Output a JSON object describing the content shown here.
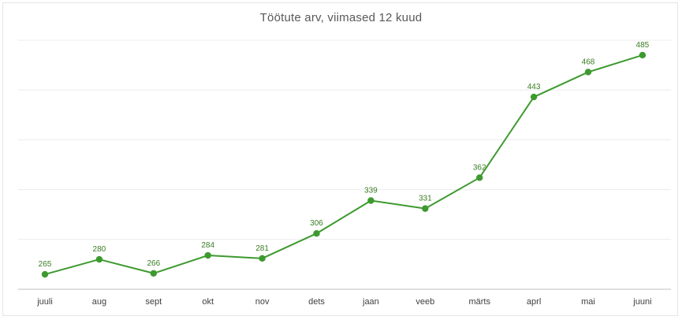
{
  "chart_data": {
    "type": "line",
    "title": "Töötute arv, viimased 12 kuud",
    "xlabel": "",
    "ylabel": "",
    "categories": [
      "juuli",
      "aug",
      "sept",
      "okt",
      "nov",
      "dets",
      "jaan",
      "veeb",
      "märts",
      "aprl",
      "mai",
      "juuni"
    ],
    "series": [
      {
        "values": [
          265,
          280,
          266,
          284,
          281,
          306,
          339,
          331,
          362,
          443,
          468,
          485
        ]
      }
    ],
    "ylim": [
      250,
      500
    ],
    "grid": true,
    "legend": "none",
    "data_labels": true,
    "colors": {
      "line": "#3d9a2e",
      "label": "#3a7d23"
    }
  }
}
